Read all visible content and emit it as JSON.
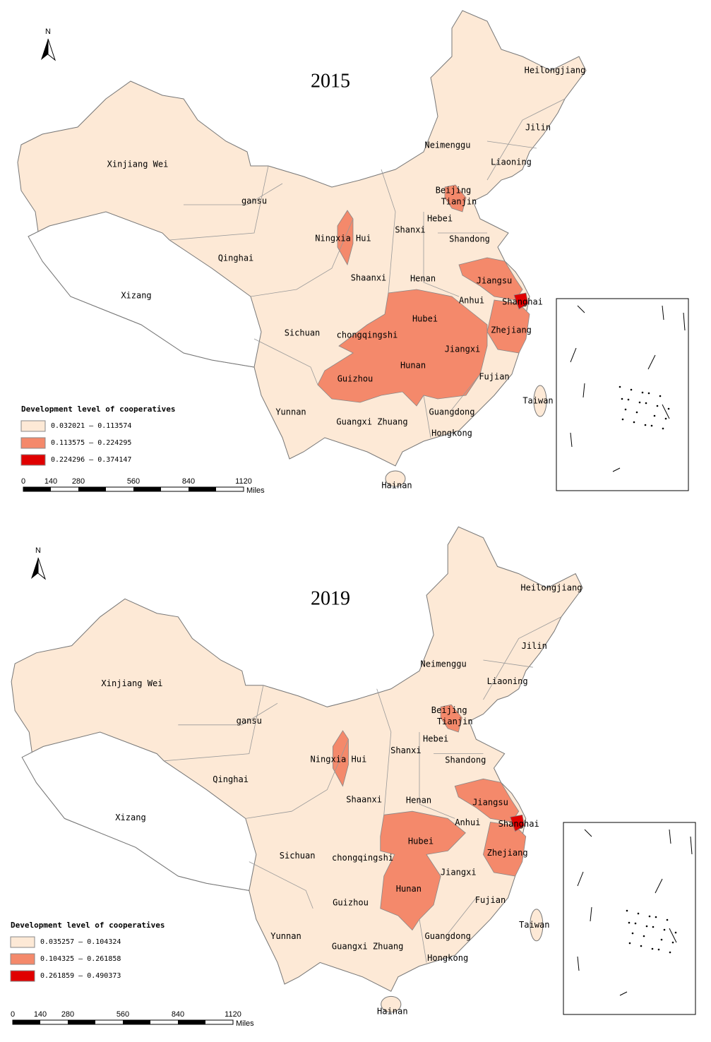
{
  "maps": [
    {
      "title": "2015",
      "north": "N",
      "labels": [
        "Heilongjiang",
        "Jilin",
        "Liaoning",
        "Neimenggu",
        "Xinjiang Wei",
        "gansu",
        "Beijing",
        "Tianjin",
        "Hebei",
        "Shanxi",
        "Shandong",
        "Ningxia Hui",
        "Qinghai",
        "Shaanxi",
        "Henan",
        "Jiangsu",
        "Xizang",
        "Anhui",
        "Shanghai",
        "Hubei",
        "Sichuan",
        "chongqingshi",
        "Zhejiang",
        "Jiangxi",
        "Hunan",
        "Guizhou",
        "Fujian",
        "Yunnan",
        "Taiwan",
        "Guangdong",
        "Guangxi Zhuang",
        "Hongkong",
        "Hainan"
      ],
      "legend": {
        "title": "Development level of cooperatives",
        "items": [
          {
            "label": "0.032021 — 0.113574",
            "color": "#fde9d6"
          },
          {
            "label": "0.113575 — 0.224295",
            "color": "#f4896b"
          },
          {
            "label": "0.224296 — 0.374147",
            "color": "#e00000"
          }
        ]
      },
      "scale": {
        "ticks": [
          "0",
          "140",
          "280",
          "560",
          "840",
          "1120"
        ],
        "unit": "Miles"
      }
    },
    {
      "title": "2019",
      "north": "N",
      "labels": [
        "Heilongjiang",
        "Jilin",
        "Liaoning",
        "Neimenggu",
        "Xinjiang Wei",
        "gansu",
        "Beijing",
        "Tianjin",
        "Hebei",
        "Shanxi",
        "Shandong",
        "Ningxia Hui",
        "Qinghai",
        "Shaanxi",
        "Henan",
        "Jiangsu",
        "Xizang",
        "Anhui",
        "Shanghai",
        "Hubei",
        "Sichuan",
        "chongqingshi",
        "Zhejiang",
        "Jiangxi",
        "Hunan",
        "Guizhou",
        "Fujian",
        "Yunnan",
        "Taiwan",
        "Guangdong",
        "Guangxi Zhuang",
        "Hongkong",
        "Hainan"
      ],
      "legend": {
        "title": "Development level of cooperatives",
        "items": [
          {
            "label": "0.035257 — 0.104324",
            "color": "#fde9d6"
          },
          {
            "label": "0.104325 — 0.261858",
            "color": "#f4896b"
          },
          {
            "label": "0.261859 — 0.490373",
            "color": "#e00000"
          }
        ]
      },
      "scale": {
        "ticks": [
          "0",
          "140",
          "280",
          "560",
          "840",
          "1120"
        ],
        "unit": "Miles"
      }
    }
  ]
}
